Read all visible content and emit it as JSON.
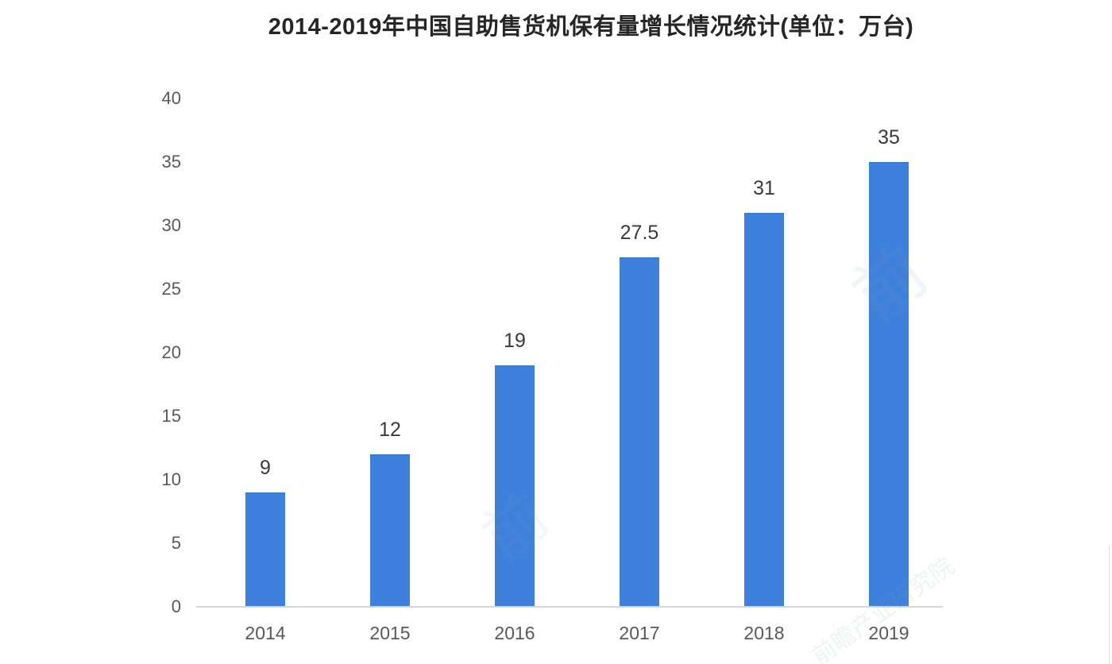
{
  "chart_data": {
    "type": "bar",
    "title": "2014-2019年中国自助售货机保有量增长情况统计(单位：万台)",
    "categories": [
      "2014",
      "2015",
      "2016",
      "2017",
      "2018",
      "2019"
    ],
    "values": [
      9,
      12,
      19,
      27.5,
      31,
      35
    ],
    "value_labels": [
      "9",
      "12",
      "19",
      "27.5",
      "31",
      "35"
    ],
    "xlabel": "",
    "ylabel": "",
    "ylim": [
      0,
      40
    ],
    "yticks": [
      0,
      5,
      10,
      15,
      20,
      25,
      30,
      35,
      40
    ],
    "grid": false,
    "legend_position": "none",
    "bar_color": "#3E81DC",
    "axis_line_color": "#D6D6D6",
    "tick_label_color": "#595959",
    "data_label_color": "#3A3A3A",
    "title_color": "#262626",
    "background_color": "#FFFFFF"
  },
  "watermark": {
    "glyph": "前",
    "label": "前瞻产业研究院"
  }
}
